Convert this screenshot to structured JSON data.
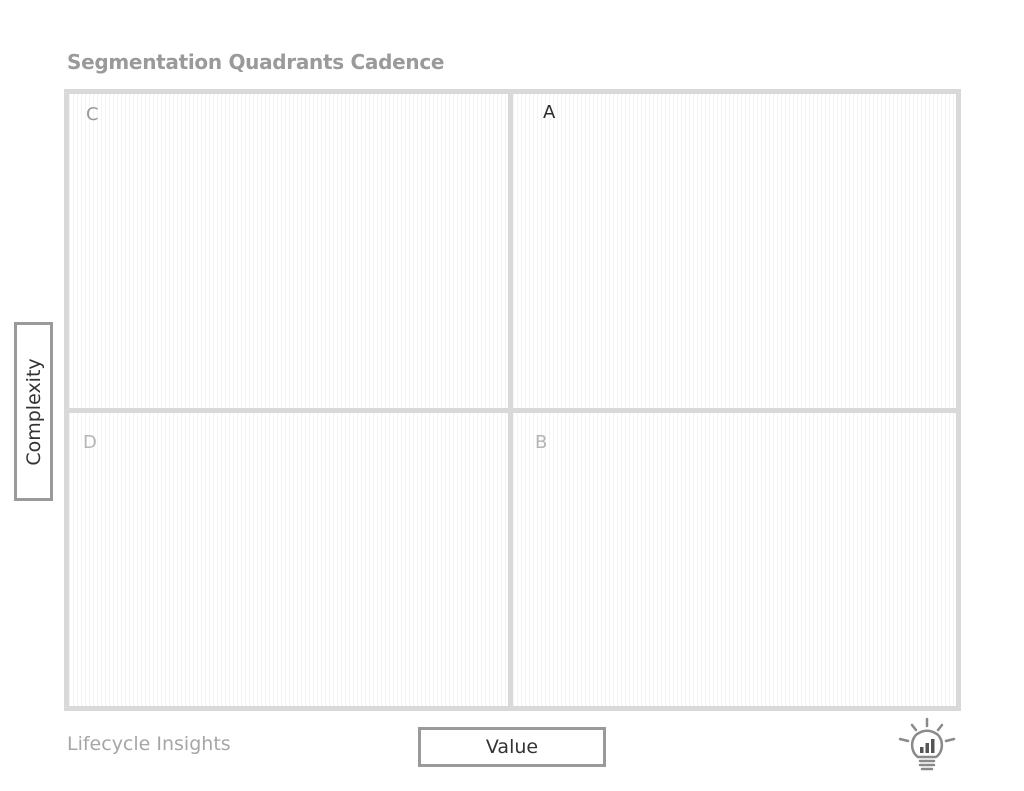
{
  "title": "Segmentation Quadrants Cadence",
  "quadrants": {
    "top_left": "C",
    "top_right": "A",
    "bottom_left": "D",
    "bottom_right": "B"
  },
  "axes": {
    "y_label": "Complexity",
    "x_label": "Value"
  },
  "footer": {
    "brand": "Lifecycle Insights"
  },
  "icons": {
    "logo": "lightbulb-bar-chart-icon"
  },
  "colors": {
    "frame": "#d9d9d9",
    "axis_box_border": "#9a9a9a",
    "title": "#9a9a9a"
  }
}
